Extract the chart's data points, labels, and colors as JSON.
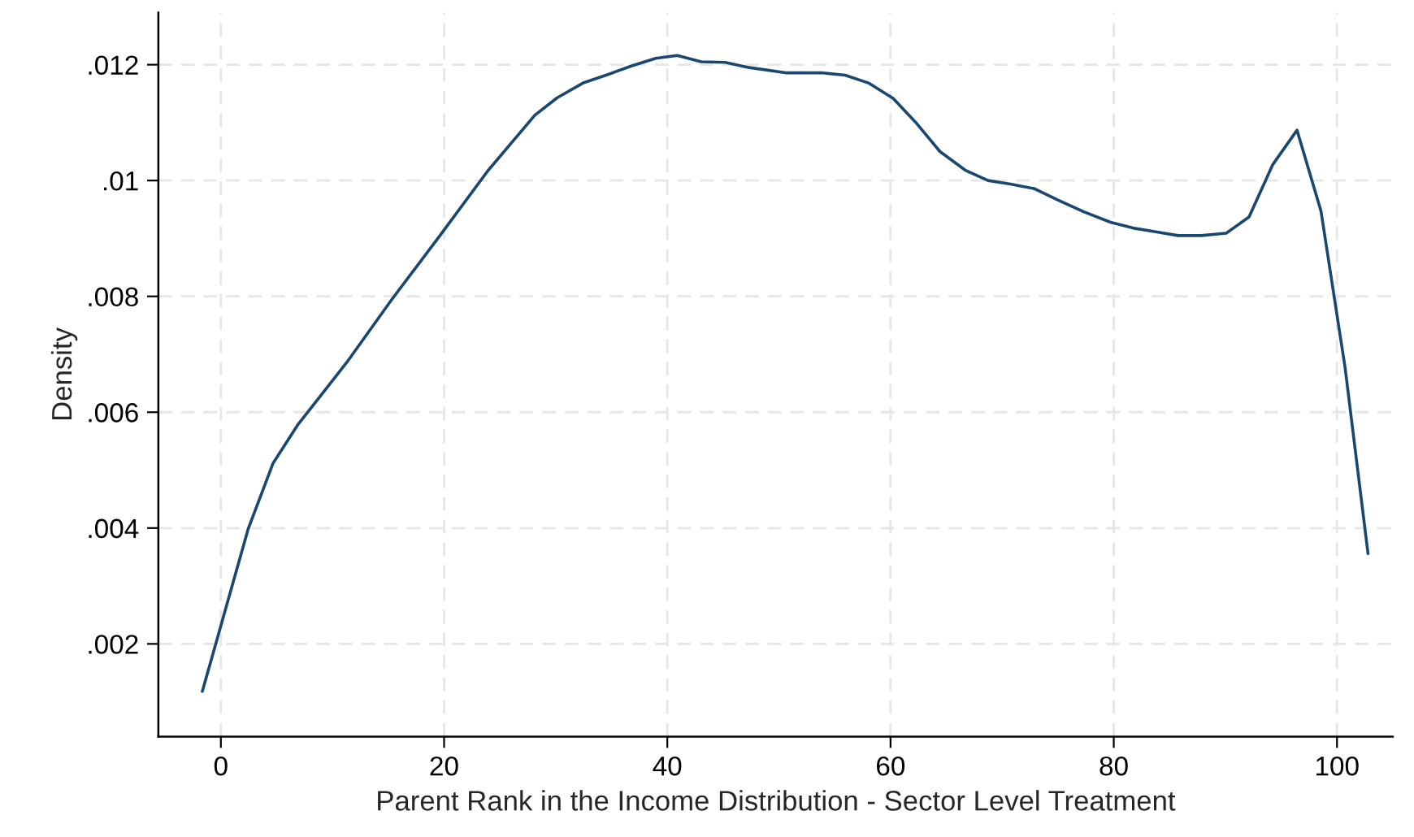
{
  "chart_data": {
    "type": "line",
    "xlabel": "Parent Rank in the Income Distribution - Sector Level Treatment",
    "ylabel": "Density",
    "xlim": [
      -5.6,
      105
    ],
    "ylim": [
      0.0004,
      0.0129
    ],
    "xticks": [
      0,
      20,
      40,
      60,
      80,
      100
    ],
    "yticks": [
      {
        "value": 0.002,
        "label": ".002"
      },
      {
        "value": 0.004,
        "label": ".004"
      },
      {
        "value": 0.006,
        "label": ".006"
      },
      {
        "value": 0.008,
        "label": ".008"
      },
      {
        "value": 0.01,
        "label": ".01"
      },
      {
        "value": 0.012,
        "label": ".012"
      }
    ],
    "grid": true,
    "line_style": "solid",
    "marker": "none",
    "series": [
      {
        "color": "#1a476f",
        "x": [
          -1.66,
          2.44,
          4.68,
          6.88,
          9.13,
          11.28,
          15.33,
          19.63,
          23.93,
          28.14,
          30.14,
          32.52,
          34.67,
          36.82,
          38.97,
          40.89,
          43.04,
          45.19,
          47.34,
          50.6,
          53.78,
          55.93,
          58.08,
          60.23,
          62.23,
          64.43,
          66.68,
          68.73,
          70.73,
          72.88,
          75.03,
          77.32,
          79.71,
          81.72,
          83.87,
          85.77,
          87.82,
          90.07,
          92.12,
          94.23,
          96.42,
          98.57,
          100.72,
          102.78
        ],
        "values": [
          0.00118,
          0.00398,
          0.00512,
          0.00578,
          0.00633,
          0.00686,
          0.00795,
          0.00905,
          0.01017,
          0.01113,
          0.01143,
          0.01169,
          0.01183,
          0.01198,
          0.01211,
          0.01216,
          0.01205,
          0.01204,
          0.01195,
          0.01186,
          0.01186,
          0.01182,
          0.01168,
          0.01142,
          0.01101,
          0.0105,
          0.01018,
          0.01,
          0.00994,
          0.00986,
          0.00966,
          0.00946,
          0.00928,
          0.00918,
          0.00911,
          0.00905,
          0.00905,
          0.00909,
          0.00937,
          0.01027,
          0.01087,
          0.00947,
          0.00678,
          0.00356
        ]
      }
    ]
  }
}
